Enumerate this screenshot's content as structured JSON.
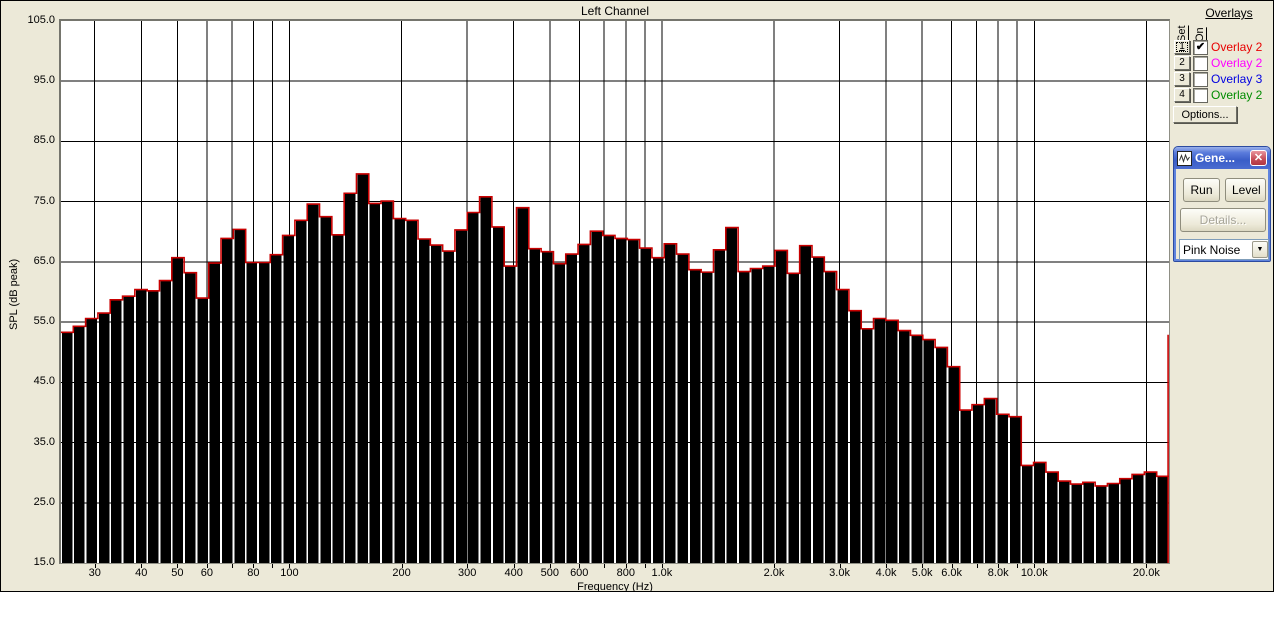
{
  "window": {
    "title": "Left Channel"
  },
  "chart_data": {
    "type": "bar",
    "title": "Left Channel",
    "xlabel": "Frequency (Hz)",
    "ylabel": "SPL (dB peak)",
    "ylim": [
      15,
      105
    ],
    "y_tick_labels": [
      "105.0",
      "95.0",
      "85.0",
      "75.0",
      "65.0",
      "55.0",
      "45.0",
      "35.0",
      "25.0",
      "15.0"
    ],
    "x_log_domain": [
      24.35,
      23000
    ],
    "x_gridlines": [
      30,
      40,
      50,
      60,
      70,
      80,
      90,
      100,
      200,
      300,
      400,
      500,
      600,
      700,
      800,
      900,
      1000,
      2000,
      3000,
      4000,
      5000,
      6000,
      7000,
      8000,
      9000,
      10000,
      20000
    ],
    "x_tick_labels": [
      {
        "f": 30,
        "label": "30"
      },
      {
        "f": 40,
        "label": "40"
      },
      {
        "f": 50,
        "label": "50"
      },
      {
        "f": 60,
        "label": "60"
      },
      {
        "f": 80,
        "label": "80"
      },
      {
        "f": 100,
        "label": "100"
      },
      {
        "f": 200,
        "label": "200"
      },
      {
        "f": 300,
        "label": "300"
      },
      {
        "f": 400,
        "label": "400"
      },
      {
        "f": 500,
        "label": "500"
      },
      {
        "f": 600,
        "label": "600"
      },
      {
        "f": 800,
        "label": "800"
      },
      {
        "f": 1000,
        "label": "1.0k"
      },
      {
        "f": 2000,
        "label": "2.0k"
      },
      {
        "f": 3000,
        "label": "3.0k"
      },
      {
        "f": 4000,
        "label": "4.0k"
      },
      {
        "f": 5000,
        "label": "5.0k"
      },
      {
        "f": 6000,
        "label": "6.0k"
      },
      {
        "f": 8000,
        "label": "8.0k"
      },
      {
        "f": 10000,
        "label": "10.0k"
      },
      {
        "f": 20000,
        "label": "20.0k"
      }
    ],
    "grid_on": true,
    "plot_bg": "#ffffff",
    "grid_color": "#000000",
    "bar_fill": "#000000",
    "bar_outline": "#c80000",
    "bars_db": [
      53.3,
      54.3,
      55.6,
      56.5,
      58.7,
      59.3,
      60.4,
      60.2,
      61.9,
      65.7,
      63.2,
      59.0,
      64.8,
      68.9,
      70.4,
      64.9,
      64.9,
      66.2,
      69.4,
      71.9,
      74.6,
      72.5,
      69.5,
      76.4,
      79.6,
      74.7,
      75.1,
      72.2,
      71.9,
      68.8,
      67.8,
      66.8,
      70.3,
      73.2,
      75.8,
      70.8,
      64.3,
      74.0,
      67.2,
      66.7,
      64.7,
      66.3,
      67.9,
      70.1,
      69.4,
      68.9,
      68.7,
      67.3,
      65.7,
      68.0,
      66.3,
      63.7,
      63.3,
      67.0,
      70.7,
      63.4,
      63.9,
      64.3,
      66.9,
      63.1,
      67.7,
      65.8,
      63.4,
      60.4,
      56.9,
      53.9,
      55.6,
      55.3,
      53.6,
      52.8,
      52.1,
      50.8,
      47.6,
      40.4,
      41.3,
      42.3,
      39.7,
      39.3,
      31.2,
      31.7,
      30.1,
      28.6,
      28.1,
      28.4,
      27.8,
      28.2,
      29.0,
      29.7,
      30.1,
      29.4
    ],
    "right_edge_marker": {
      "db_from": 52.9,
      "db_to": 15
    }
  },
  "overlays_panel": {
    "title": "Overlays",
    "col_set": "Set",
    "col_on": "On",
    "rows": [
      {
        "set_label": "1",
        "checked": true,
        "label": "Overlay 2",
        "color": "#e80000",
        "focused": true
      },
      {
        "set_label": "2",
        "checked": false,
        "label": "Overlay 2",
        "color": "#ff00ff",
        "focused": false
      },
      {
        "set_label": "3",
        "checked": false,
        "label": "Overlay 3",
        "color": "#0000e0",
        "focused": false
      },
      {
        "set_label": "4",
        "checked": false,
        "label": "Overlay 2",
        "color": "#008c00",
        "focused": false
      }
    ],
    "options_button": "Options...",
    "check_glyph": "✔"
  },
  "generator_window": {
    "title": "Gene...",
    "close_glyph": "✕",
    "run_button": "Run",
    "level_button": "Level",
    "details_button": "Details...",
    "signal_select": "Pink Noise",
    "arrow_glyph": "▼"
  },
  "colors": {
    "window_bg": "#ece9d8",
    "titlebar_blue": "#3a5dc8"
  }
}
